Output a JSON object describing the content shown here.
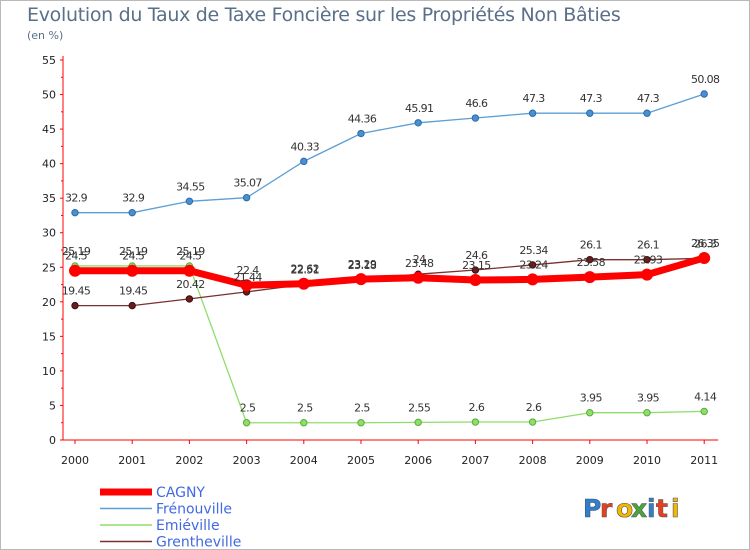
{
  "title": "Evolution du Taux de Taxe Foncière sur les Propriétés Non Bâties",
  "subtitle": "(en %)",
  "brand": {
    "letters": [
      "P",
      "r",
      "o",
      "x",
      "i",
      "t",
      "i"
    ],
    "colors": [
      "#2f7fd0",
      "#e8401c",
      "#f2b705",
      "#4aa63c",
      "#2f7fd0",
      "#e8401c",
      "#f2b705"
    ]
  },
  "chart_data": {
    "type": "line",
    "title": "Evolution du Taux de Taxe Foncière sur les Propriétés Non Bâties",
    "ylabel": "(en %)",
    "ylim": [
      0,
      55
    ],
    "yticks": [
      0,
      5,
      10,
      15,
      20,
      25,
      30,
      35,
      40,
      45,
      50,
      55
    ],
    "grid": false,
    "categories": [
      "2000",
      "2001",
      "2002",
      "2003",
      "2004",
      "2005",
      "2006",
      "2007",
      "2008",
      "2009",
      "2010",
      "2011"
    ],
    "series": [
      {
        "name": "CAGNY",
        "color": "#ff0000",
        "values": [
          24.5,
          24.5,
          24.5,
          22.4,
          22.62,
          23.29,
          23.48,
          23.15,
          23.24,
          23.58,
          23.93,
          26.35
        ],
        "labels": [
          "24.5",
          "24.5",
          "24.5",
          "22.4",
          "22.62",
          "23.29",
          "23.48",
          "23.15",
          "23.24",
          "23.58",
          "23.93",
          "26.35"
        ]
      },
      {
        "name": "Frénouville",
        "color": "#5b9fd6",
        "values": [
          32.9,
          32.9,
          34.55,
          35.07,
          40.33,
          44.36,
          45.91,
          46.6,
          47.3,
          47.3,
          47.3,
          50.08
        ],
        "labels": [
          "32.9",
          "32.9",
          "34.55",
          "35.07",
          "40.33",
          "44.36",
          "45.91",
          "46.6",
          "47.3",
          "47.3",
          "47.3",
          "50.08"
        ]
      },
      {
        "name": "Emiéville",
        "color": "#8fdd6a",
        "values": [
          25.19,
          25.19,
          25.19,
          2.5,
          2.5,
          2.5,
          2.55,
          2.6,
          2.6,
          3.95,
          3.95,
          4.14
        ],
        "labels": [
          "25.19",
          "25.19",
          "25.19",
          "2.5",
          "2.5",
          "2.5",
          "2.55",
          "2.6",
          "2.6",
          "3.95",
          "3.95",
          "4.14"
        ]
      },
      {
        "name": "Grentheville",
        "color": "#7a3030",
        "values": [
          19.45,
          19.45,
          20.42,
          21.44,
          22.51,
          23.18,
          24,
          24.6,
          25.34,
          26.1,
          26.1,
          26.3
        ],
        "labels": [
          "19.45",
          "19.45",
          "20.42",
          "21.44",
          "22.51",
          "23.18",
          "24",
          "24.6",
          "25.34",
          "26.1",
          "26.1",
          "26.3"
        ]
      }
    ]
  }
}
